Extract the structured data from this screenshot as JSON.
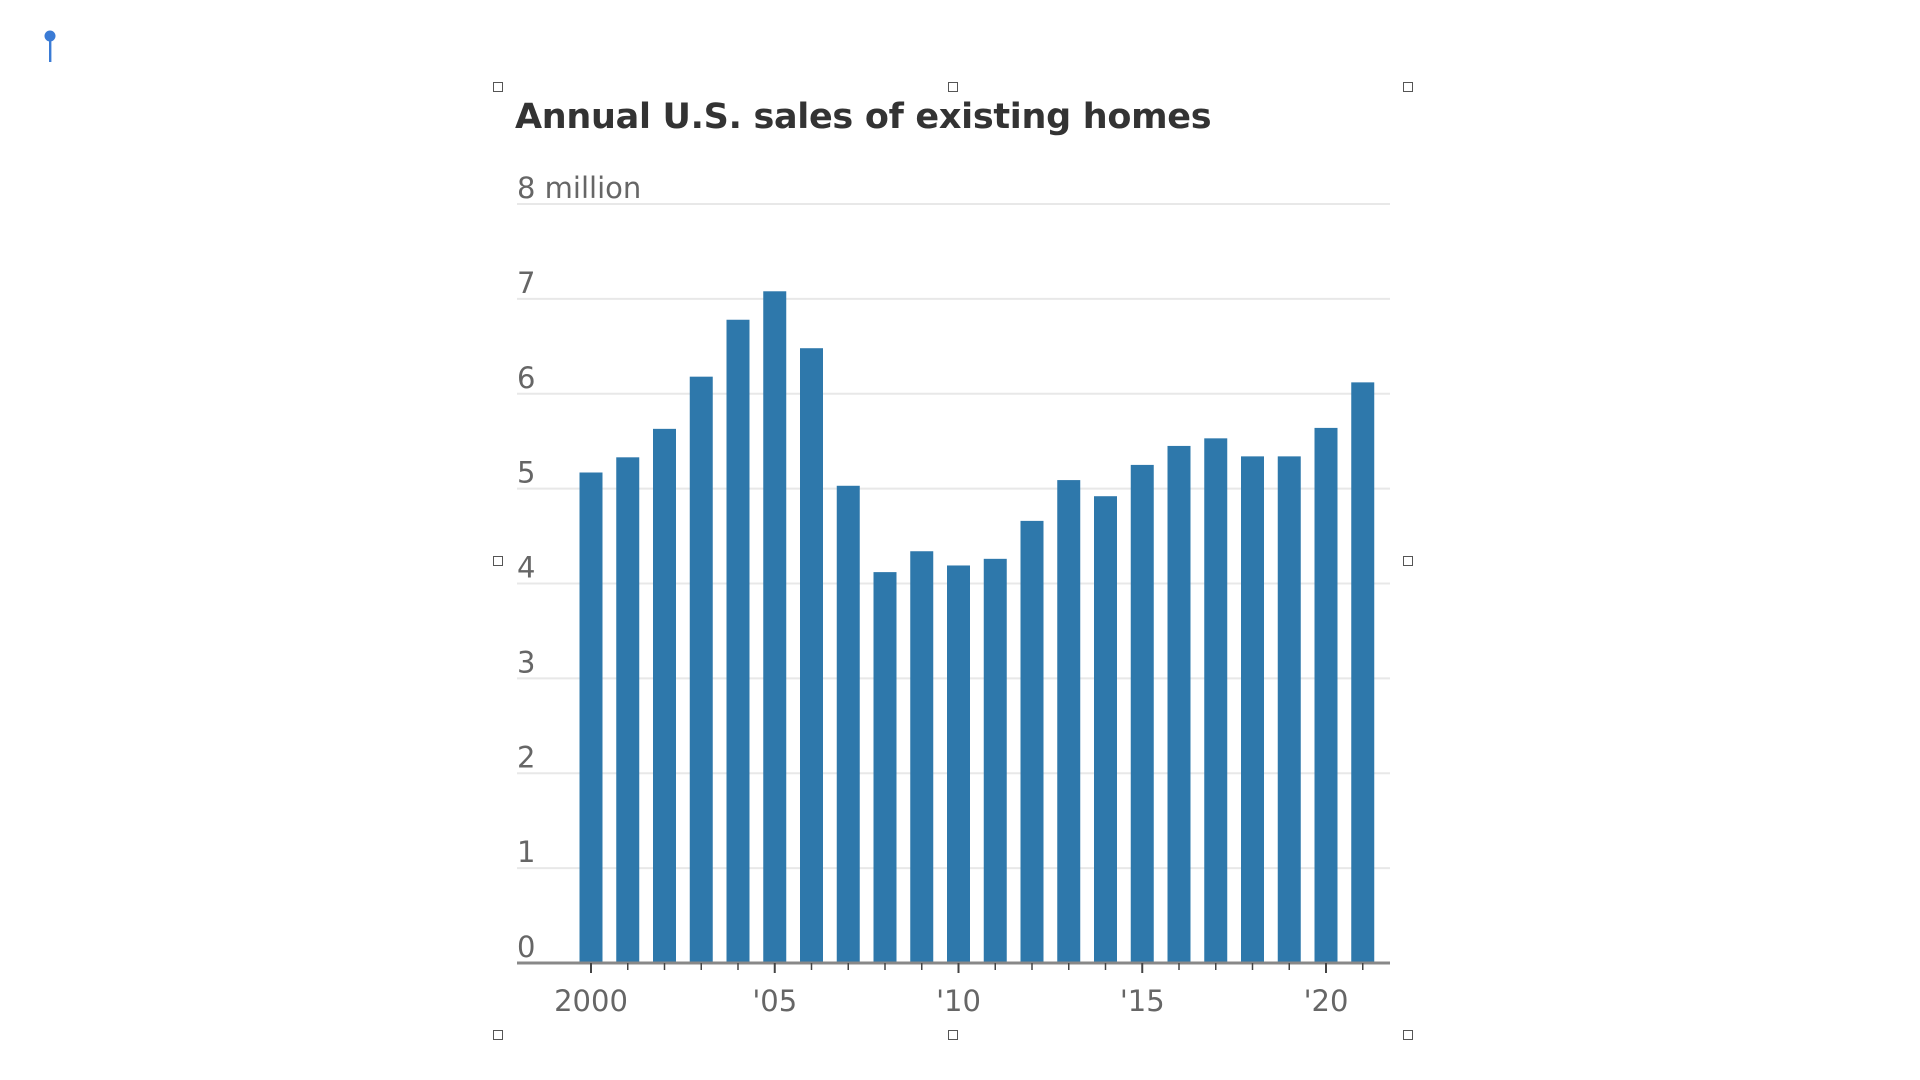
{
  "chart_data": {
    "type": "bar",
    "title": "Annual U.S. sales of existing homes",
    "unit_label": "8 million",
    "categories": [
      "2000",
      "2001",
      "2002",
      "2003",
      "2004",
      "2005",
      "2006",
      "2007",
      "2008",
      "2009",
      "2010",
      "2011",
      "2012",
      "2013",
      "2014",
      "2015",
      "2016",
      "2017",
      "2018",
      "2019",
      "2020",
      "2021"
    ],
    "values": [
      5.17,
      5.33,
      5.63,
      6.18,
      6.78,
      7.08,
      6.48,
      5.03,
      4.12,
      4.34,
      4.19,
      4.26,
      4.66,
      5.09,
      4.92,
      5.25,
      5.45,
      5.53,
      5.34,
      5.34,
      5.64,
      6.12
    ],
    "ylim": [
      0,
      8
    ],
    "yticks": [
      0,
      1,
      2,
      3,
      4,
      5,
      6,
      7
    ],
    "ytick_labels": [
      "0",
      "1",
      "2",
      "3",
      "4",
      "5",
      "6",
      "7"
    ],
    "xtick_labels": [
      {
        "year": "2000",
        "label": "2000"
      },
      {
        "year": "2005",
        "label": "'05"
      },
      {
        "year": "2010",
        "label": "'10"
      },
      {
        "year": "2015",
        "label": "'15"
      },
      {
        "year": "2020",
        "label": "'20"
      }
    ],
    "grid": true,
    "colors": {
      "bar": "#2e78ab",
      "grid": "#e8e8e8",
      "axis": "#888888",
      "tick_text": "#666666",
      "title": "#333333"
    }
  },
  "icons": {
    "pin": "pin-icon",
    "handles": "selection-handle"
  },
  "pin_color": "#3a7bd5"
}
